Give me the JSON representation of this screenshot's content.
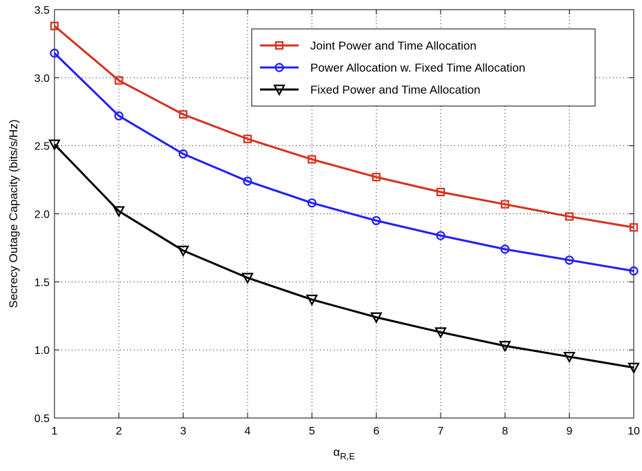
{
  "chart_data": {
    "type": "line",
    "xlabel": "α",
    "xlabel_sub": "R,E",
    "ylabel": "Secrecy Outage Capacity (bits/s/Hz)",
    "xlim": [
      1,
      10
    ],
    "ylim": [
      0.5,
      3.5
    ],
    "xticks": [
      1,
      2,
      3,
      4,
      5,
      6,
      7,
      8,
      9,
      10
    ],
    "yticks": [
      0.5,
      1.0,
      1.5,
      2.0,
      2.5,
      3.0,
      3.5
    ],
    "ytick_labels": [
      "0.5",
      "1.0",
      "1.5",
      "2.0",
      "2.5",
      "3.0",
      "3.5"
    ],
    "grid": true,
    "legend_position": "top-right",
    "x": [
      1,
      2,
      3,
      4,
      5,
      6,
      7,
      8,
      9,
      10
    ],
    "series": [
      {
        "name": "Joint Power and Time Allocation",
        "color": "#d7301f",
        "marker": "square",
        "values": [
          3.38,
          2.98,
          2.73,
          2.55,
          2.4,
          2.27,
          2.16,
          2.07,
          1.98,
          1.9
        ]
      },
      {
        "name": "Power Allocation w. Fixed Time Allocation",
        "color": "#1f1fff",
        "marker": "circle",
        "values": [
          3.18,
          2.72,
          2.44,
          2.24,
          2.08,
          1.95,
          1.84,
          1.74,
          1.66,
          1.58
        ]
      },
      {
        "name": "Fixed Power and Time Allocation",
        "color": "#000000",
        "marker": "triangle-down",
        "values": [
          2.51,
          2.02,
          1.73,
          1.53,
          1.37,
          1.24,
          1.13,
          1.03,
          0.95,
          0.87
        ]
      }
    ]
  }
}
